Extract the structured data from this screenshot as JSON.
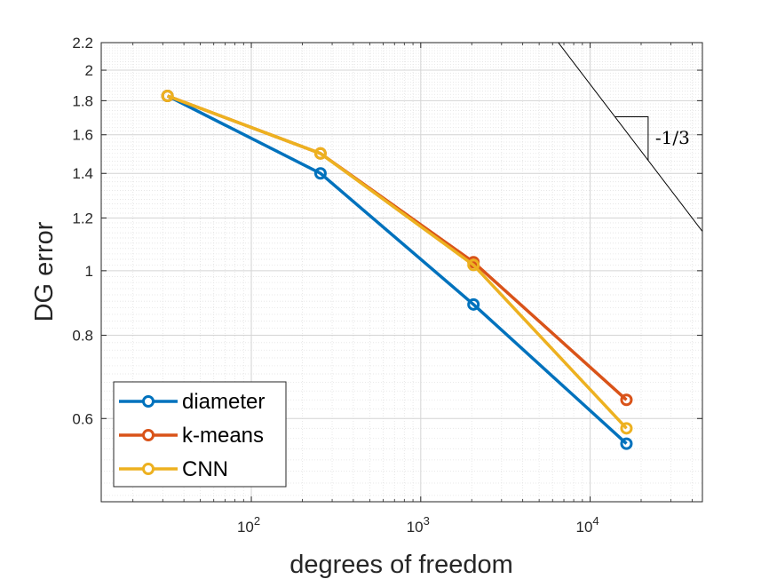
{
  "chart_data": {
    "type": "line",
    "x_scale": "log",
    "y_scale": "log",
    "xlabel": "degrees of freedom",
    "ylabel": "DG error",
    "xlim": [
      13,
      46000
    ],
    "ylim": [
      0.45,
      2.2
    ],
    "x_ticks": [
      {
        "value": 100,
        "base": "10",
        "exp": "2"
      },
      {
        "value": 1000,
        "base": "10",
        "exp": "3"
      },
      {
        "value": 10000,
        "base": "10",
        "exp": "4"
      }
    ],
    "y_ticks": [
      {
        "value": 0.6,
        "label": "0.6"
      },
      {
        "value": 0.8,
        "label": "0.8"
      },
      {
        "value": 1.0,
        "label": "1"
      },
      {
        "value": 1.2,
        "label": "1.2"
      },
      {
        "value": 1.4,
        "label": "1.4"
      },
      {
        "value": 1.6,
        "label": "1.6"
      },
      {
        "value": 1.8,
        "label": "1.8"
      },
      {
        "value": 2.0,
        "label": "2"
      },
      {
        "value": 2.2,
        "label": "2.2"
      }
    ],
    "grid": true,
    "minor_grid": true,
    "legend_position": "bottom-left",
    "series": [
      {
        "name": "diameter",
        "color": "#0072BD",
        "x": [
          32,
          256,
          2048,
          16384
        ],
        "y": [
          1.83,
          1.4,
          0.89,
          0.55
        ]
      },
      {
        "name": "k-means",
        "color": "#D95319",
        "x": [
          32,
          256,
          2048,
          16384
        ],
        "y": [
          1.83,
          1.5,
          1.03,
          0.64
        ]
      },
      {
        "name": "CNN",
        "color": "#EDB120",
        "x": [
          32,
          256,
          2048,
          16384
        ],
        "y": [
          1.83,
          1.5,
          1.02,
          0.58
        ]
      }
    ],
    "slope_triangle": {
      "label": "-1/3",
      "slope": -0.3333,
      "line_x": [
        5000,
        46000
      ],
      "line_y0": 2.4,
      "tri_x": [
        14000,
        22000
      ]
    }
  }
}
